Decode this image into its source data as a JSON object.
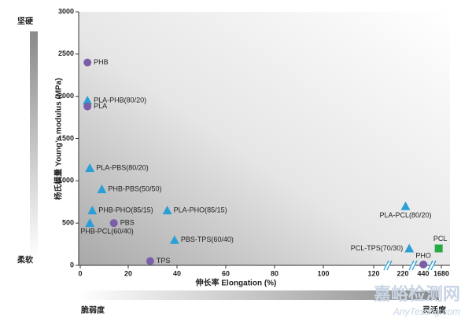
{
  "chart_data": {
    "type": "scatter",
    "y_label": "杨氏模量 Young's modulus (MPa)",
    "x_label": "伸长率 Elongation (%)",
    "top_label": "坚硬",
    "bottom_label": "柔软",
    "left_label": "脆弱度",
    "right_label": "灵活度",
    "watermark": "嘉峪检测网",
    "watermark_url": "AnyTesting.com",
    "ylim": [
      0,
      3000
    ],
    "yticks": [
      0,
      500,
      1000,
      1500,
      2000,
      2500,
      3000
    ],
    "xlim": [
      0,
      1680
    ],
    "xticks": [
      0,
      20,
      40,
      60,
      80,
      100,
      120,
      220,
      440,
      1680
    ],
    "axis_break": true,
    "shape_colors": {
      "circle": "#7b5ea7",
      "triangle": "#2a9fd6",
      "square": "#2aa844"
    },
    "points": [
      {
        "label": "PHB",
        "x": 3,
        "y": 2400,
        "shape": "circle"
      },
      {
        "label": "PLA-PHB(80/20)",
        "x": 3,
        "y": 1950,
        "shape": "triangle"
      },
      {
        "label": "PLA",
        "x": 3,
        "y": 1880,
        "shape": "circle"
      },
      {
        "label": "PLA-PBS(80/20)",
        "x": 4,
        "y": 1150,
        "shape": "triangle"
      },
      {
        "label": "PHB-PBS(50/50)",
        "x": 9,
        "y": 900,
        "shape": "triangle"
      },
      {
        "label": "PHB-PHO(85/15)",
        "x": 5,
        "y": 650,
        "shape": "triangle"
      },
      {
        "label": "PLA-PHO(85/15)",
        "x": 36,
        "y": 650,
        "shape": "triangle"
      },
      {
        "label": "PBS",
        "x": 14,
        "y": 500,
        "shape": "circle"
      },
      {
        "label": "PHB-PCL(60/40)",
        "x": 4,
        "y": 500,
        "shape": "triangle"
      },
      {
        "label": "PBS-TPS(60/40)",
        "x": 39,
        "y": 300,
        "shape": "triangle"
      },
      {
        "label": "TPS",
        "x": 29,
        "y": 50,
        "shape": "circle"
      },
      {
        "label": "PLA-PCL(80/20)",
        "x": 250,
        "y": 700,
        "shape": "triangle"
      },
      {
        "label": "PCL-TPS(70/30)",
        "x": 290,
        "y": 200,
        "shape": "triangle"
      },
      {
        "label": "PHO",
        "x": 450,
        "y": 10,
        "shape": "circle"
      },
      {
        "label": "PCL",
        "x": 1500,
        "y": 200,
        "shape": "square"
      }
    ]
  }
}
